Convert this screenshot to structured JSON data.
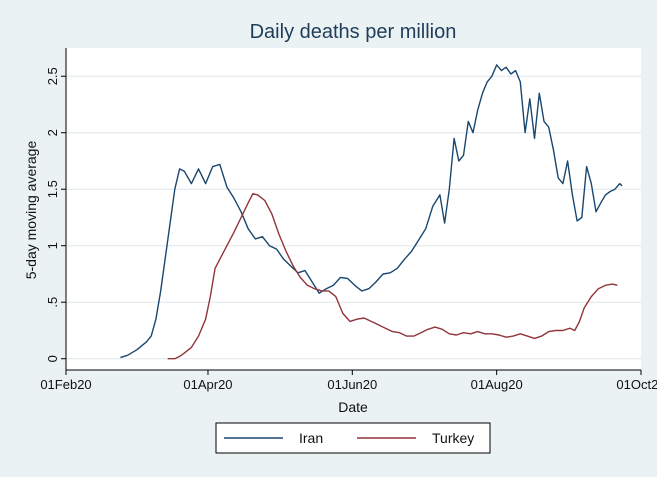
{
  "chart_data": {
    "type": "line",
    "title": "Daily deaths per million",
    "xlabel": "Date",
    "ylabel": "5-day moving average",
    "x_axis": {
      "type": "date",
      "range": [
        "2020-02-01",
        "2020-10-01"
      ],
      "ticks": [
        {
          "date": "2020-02-01",
          "label": "01Feb20"
        },
        {
          "date": "2020-04-01",
          "label": "01Apr20"
        },
        {
          "date": "2020-06-01",
          "label": "01Jun20"
        },
        {
          "date": "2020-08-01",
          "label": "01Aug20"
        },
        {
          "date": "2020-10-01",
          "label": "01Oct20"
        }
      ]
    },
    "y_axis": {
      "range": [
        -0.1,
        2.75
      ],
      "ticks": [
        {
          "value": 0,
          "label": "0"
        },
        {
          "value": 0.5,
          "label": ".5"
        },
        {
          "value": 1,
          "label": "1"
        },
        {
          "value": 1.5,
          "label": "1.5"
        },
        {
          "value": 2,
          "label": "2"
        },
        {
          "value": 2.5,
          "label": "2.5"
        }
      ]
    },
    "grid": true,
    "legend_position": "bottom",
    "series": [
      {
        "name": "Iran",
        "color": "#1a476f",
        "points": [
          [
            "2020-02-24",
            0.01
          ],
          [
            "2020-02-27",
            0.03
          ],
          [
            "2020-03-02",
            0.08
          ],
          [
            "2020-03-06",
            0.15
          ],
          [
            "2020-03-08",
            0.2
          ],
          [
            "2020-03-10",
            0.35
          ],
          [
            "2020-03-12",
            0.6
          ],
          [
            "2020-03-14",
            0.9
          ],
          [
            "2020-03-16",
            1.2
          ],
          [
            "2020-03-18",
            1.5
          ],
          [
            "2020-03-20",
            1.68
          ],
          [
            "2020-03-22",
            1.66
          ],
          [
            "2020-03-25",
            1.55
          ],
          [
            "2020-03-28",
            1.68
          ],
          [
            "2020-03-31",
            1.55
          ],
          [
            "2020-04-03",
            1.7
          ],
          [
            "2020-04-06",
            1.72
          ],
          [
            "2020-04-09",
            1.52
          ],
          [
            "2020-04-12",
            1.42
          ],
          [
            "2020-04-15",
            1.3
          ],
          [
            "2020-04-18",
            1.15
          ],
          [
            "2020-04-21",
            1.06
          ],
          [
            "2020-04-24",
            1.08
          ],
          [
            "2020-04-27",
            1.0
          ],
          [
            "2020-04-30",
            0.97
          ],
          [
            "2020-05-03",
            0.88
          ],
          [
            "2020-05-06",
            0.82
          ],
          [
            "2020-05-09",
            0.76
          ],
          [
            "2020-05-12",
            0.78
          ],
          [
            "2020-05-15",
            0.68
          ],
          [
            "2020-05-18",
            0.58
          ],
          [
            "2020-05-21",
            0.62
          ],
          [
            "2020-05-24",
            0.65
          ],
          [
            "2020-05-27",
            0.72
          ],
          [
            "2020-05-30",
            0.71
          ],
          [
            "2020-06-02",
            0.65
          ],
          [
            "2020-06-05",
            0.6
          ],
          [
            "2020-06-08",
            0.62
          ],
          [
            "2020-06-11",
            0.68
          ],
          [
            "2020-06-14",
            0.75
          ],
          [
            "2020-06-17",
            0.76
          ],
          [
            "2020-06-20",
            0.8
          ],
          [
            "2020-06-23",
            0.88
          ],
          [
            "2020-06-26",
            0.95
          ],
          [
            "2020-06-29",
            1.05
          ],
          [
            "2020-07-02",
            1.15
          ],
          [
            "2020-07-05",
            1.35
          ],
          [
            "2020-07-08",
            1.45
          ],
          [
            "2020-07-10",
            1.2
          ],
          [
            "2020-07-12",
            1.5
          ],
          [
            "2020-07-14",
            1.95
          ],
          [
            "2020-07-16",
            1.75
          ],
          [
            "2020-07-18",
            1.8
          ],
          [
            "2020-07-20",
            2.1
          ],
          [
            "2020-07-22",
            2.0
          ],
          [
            "2020-07-24",
            2.2
          ],
          [
            "2020-07-26",
            2.35
          ],
          [
            "2020-07-28",
            2.45
          ],
          [
            "2020-07-30",
            2.5
          ],
          [
            "2020-08-01",
            2.6
          ],
          [
            "2020-08-03",
            2.55
          ],
          [
            "2020-08-05",
            2.58
          ],
          [
            "2020-08-07",
            2.52
          ],
          [
            "2020-08-09",
            2.55
          ],
          [
            "2020-08-11",
            2.45
          ],
          [
            "2020-08-13",
            2.0
          ],
          [
            "2020-08-15",
            2.3
          ],
          [
            "2020-08-17",
            1.95
          ],
          [
            "2020-08-19",
            2.35
          ],
          [
            "2020-08-21",
            2.1
          ],
          [
            "2020-08-23",
            2.05
          ],
          [
            "2020-08-25",
            1.85
          ],
          [
            "2020-08-27",
            1.6
          ],
          [
            "2020-08-29",
            1.55
          ],
          [
            "2020-08-31",
            1.75
          ],
          [
            "2020-09-02",
            1.45
          ],
          [
            "2020-09-04",
            1.22
          ],
          [
            "2020-09-06",
            1.25
          ],
          [
            "2020-09-08",
            1.7
          ],
          [
            "2020-09-10",
            1.55
          ],
          [
            "2020-09-12",
            1.3
          ],
          [
            "2020-09-14",
            1.38
          ],
          [
            "2020-09-16",
            1.45
          ],
          [
            "2020-09-18",
            1.48
          ],
          [
            "2020-09-20",
            1.5
          ],
          [
            "2020-09-22",
            1.55
          ],
          [
            "2020-09-23",
            1.53
          ]
        ]
      },
      {
        "name": "Turkey",
        "color": "#90353b",
        "points": [
          [
            "2020-03-15",
            0.0
          ],
          [
            "2020-03-18",
            0.0
          ],
          [
            "2020-03-20",
            0.02
          ],
          [
            "2020-03-22",
            0.05
          ],
          [
            "2020-03-25",
            0.1
          ],
          [
            "2020-03-28",
            0.2
          ],
          [
            "2020-03-31",
            0.35
          ],
          [
            "2020-04-02",
            0.55
          ],
          [
            "2020-04-04",
            0.8
          ],
          [
            "2020-04-06",
            0.88
          ],
          [
            "2020-04-09",
            1.0
          ],
          [
            "2020-04-12",
            1.12
          ],
          [
            "2020-04-15",
            1.25
          ],
          [
            "2020-04-18",
            1.38
          ],
          [
            "2020-04-20",
            1.46
          ],
          [
            "2020-04-22",
            1.45
          ],
          [
            "2020-04-25",
            1.4
          ],
          [
            "2020-04-28",
            1.28
          ],
          [
            "2020-05-01",
            1.1
          ],
          [
            "2020-05-04",
            0.95
          ],
          [
            "2020-05-07",
            0.82
          ],
          [
            "2020-05-10",
            0.72
          ],
          [
            "2020-05-13",
            0.65
          ],
          [
            "2020-05-16",
            0.62
          ],
          [
            "2020-05-19",
            0.6
          ],
          [
            "2020-05-22",
            0.6
          ],
          [
            "2020-05-25",
            0.55
          ],
          [
            "2020-05-28",
            0.4
          ],
          [
            "2020-05-31",
            0.33
          ],
          [
            "2020-06-03",
            0.35
          ],
          [
            "2020-06-06",
            0.36
          ],
          [
            "2020-06-09",
            0.33
          ],
          [
            "2020-06-12",
            0.3
          ],
          [
            "2020-06-15",
            0.27
          ],
          [
            "2020-06-18",
            0.24
          ],
          [
            "2020-06-21",
            0.23
          ],
          [
            "2020-06-24",
            0.2
          ],
          [
            "2020-06-27",
            0.2
          ],
          [
            "2020-06-30",
            0.23
          ],
          [
            "2020-07-03",
            0.26
          ],
          [
            "2020-07-06",
            0.28
          ],
          [
            "2020-07-09",
            0.26
          ],
          [
            "2020-07-12",
            0.22
          ],
          [
            "2020-07-15",
            0.21
          ],
          [
            "2020-07-18",
            0.23
          ],
          [
            "2020-07-21",
            0.22
          ],
          [
            "2020-07-24",
            0.24
          ],
          [
            "2020-07-27",
            0.22
          ],
          [
            "2020-07-30",
            0.22
          ],
          [
            "2020-08-02",
            0.21
          ],
          [
            "2020-08-05",
            0.19
          ],
          [
            "2020-08-08",
            0.2
          ],
          [
            "2020-08-11",
            0.22
          ],
          [
            "2020-08-14",
            0.2
          ],
          [
            "2020-08-17",
            0.18
          ],
          [
            "2020-08-20",
            0.2
          ],
          [
            "2020-08-23",
            0.24
          ],
          [
            "2020-08-26",
            0.25
          ],
          [
            "2020-08-29",
            0.25
          ],
          [
            "2020-09-01",
            0.27
          ],
          [
            "2020-09-03",
            0.25
          ],
          [
            "2020-09-05",
            0.33
          ],
          [
            "2020-09-07",
            0.45
          ],
          [
            "2020-09-10",
            0.55
          ],
          [
            "2020-09-13",
            0.62
          ],
          [
            "2020-09-16",
            0.65
          ],
          [
            "2020-09-19",
            0.66
          ],
          [
            "2020-09-21",
            0.65
          ]
        ]
      }
    ]
  }
}
